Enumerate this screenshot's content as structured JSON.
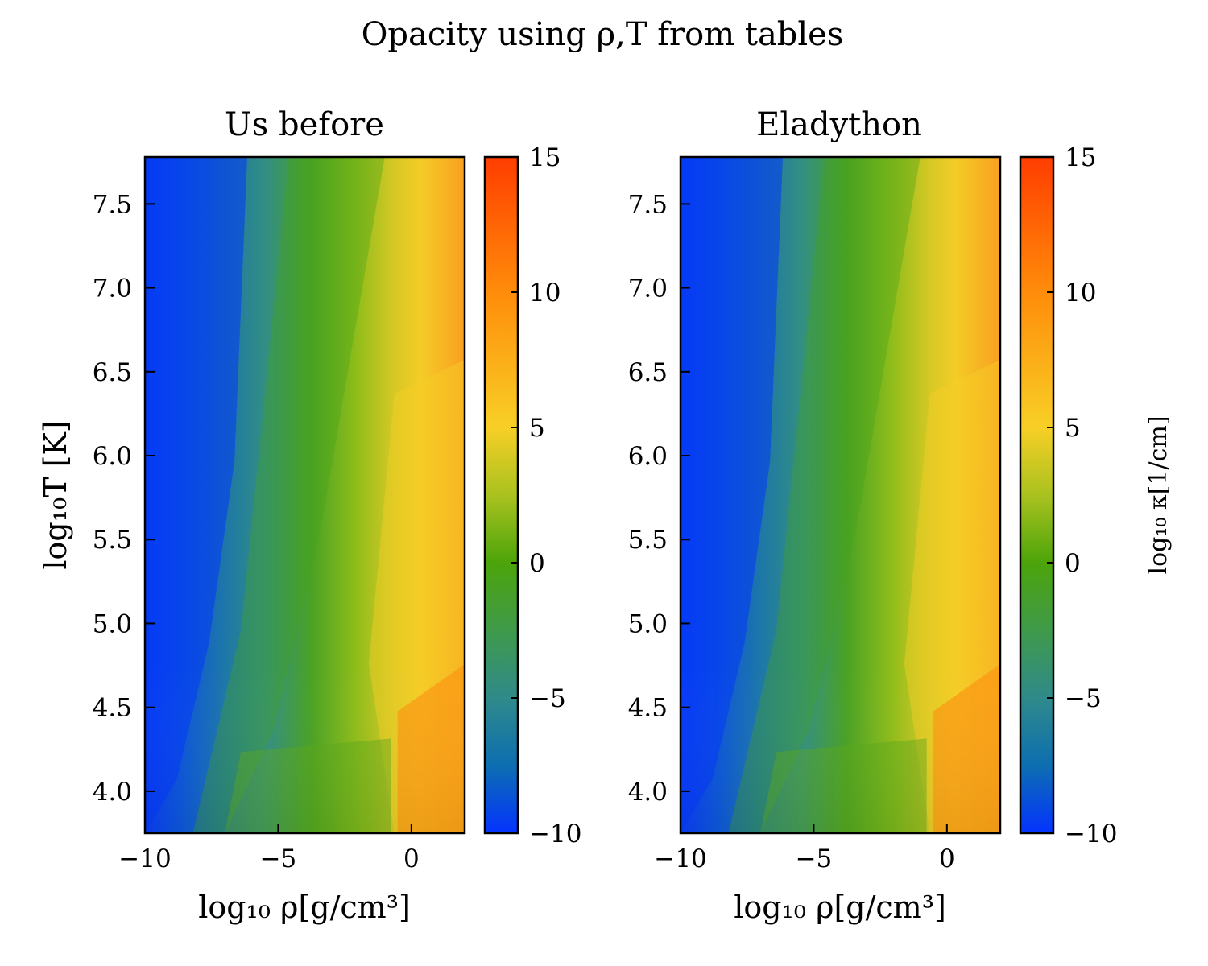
{
  "figure": {
    "suptitle": "Opacity using ρ,T from tables"
  },
  "chart_data": [
    {
      "type": "heatmap",
      "title": "Us before",
      "xlabel": "log₁₀ ρ[g/cm³]",
      "ylabel": "log₁₀T [K]",
      "xlim": [
        -10,
        2
      ],
      "ylim": [
        3.75,
        7.78
      ],
      "xticks": [
        -10,
        -5,
        0
      ],
      "xtick_labels": [
        "−10",
        "−5",
        "0"
      ],
      "yticks": [
        4.0,
        4.5,
        5.0,
        5.5,
        6.0,
        6.5,
        7.0,
        7.5
      ],
      "ytick_labels": [
        "4.0",
        "4.5",
        "5.0",
        "5.5",
        "6.0",
        "6.5",
        "7.0",
        "7.5"
      ],
      "x": [
        -10,
        -8,
        -6,
        -4,
        -2,
        -0.7,
        0,
        2
      ],
      "y": [
        3.75,
        4.0,
        4.5,
        5.0,
        5.5,
        6.0,
        6.5,
        7.0,
        7.5,
        7.78
      ],
      "z_note": "log10 opacity, color-scaled",
      "zlim": [
        -10,
        15
      ],
      "colorbar": {
        "ticks": [
          -10,
          -5,
          0,
          5,
          10,
          15
        ],
        "tick_labels": [
          "−10",
          "−5",
          "0",
          "5",
          "10",
          "15"
        ],
        "label": ""
      }
    },
    {
      "type": "heatmap",
      "title": "Eladython",
      "xlabel": "log₁₀ ρ[g/cm³]",
      "ylabel": "",
      "xlim": [
        -10,
        2
      ],
      "ylim": [
        3.75,
        7.78
      ],
      "xticks": [
        -10,
        -5,
        0
      ],
      "xtick_labels": [
        "−10",
        "−5",
        "0"
      ],
      "yticks": [
        4.0,
        4.5,
        5.0,
        5.5,
        6.0,
        6.5,
        7.0,
        7.5
      ],
      "ytick_labels": [
        "4.0",
        "4.5",
        "5.0",
        "5.5",
        "6.0",
        "6.5",
        "7.0",
        "7.5"
      ],
      "x": [
        -10,
        -8,
        -6,
        -4,
        -2,
        -0.7,
        0,
        2
      ],
      "y": [
        3.75,
        4.0,
        4.5,
        5.0,
        5.5,
        6.0,
        6.5,
        7.0,
        7.5,
        7.78
      ],
      "zlim": [
        -10,
        15
      ],
      "colorbar": {
        "ticks": [
          -10,
          -5,
          0,
          5,
          10,
          15
        ],
        "tick_labels": [
          "−10",
          "−5",
          "0",
          "5",
          "10",
          "15"
        ],
        "label": "log₁₀ κ[1/cm]"
      }
    }
  ],
  "colormap": {
    "stops": [
      {
        "value": -10,
        "color": "#0433ff"
      },
      {
        "value": -7.5,
        "color": "#0d6eb0"
      },
      {
        "value": -5,
        "color": "#2f8a8a"
      },
      {
        "value": -2.5,
        "color": "#3f9a4a"
      },
      {
        "value": 0,
        "color": "#4ca40a"
      },
      {
        "value": 2.5,
        "color": "#aac21f"
      },
      {
        "value": 5,
        "color": "#f8cf26"
      },
      {
        "value": 10,
        "color": "#ff8c0a"
      },
      {
        "value": 15,
        "color": "#ff3d00"
      }
    ]
  }
}
